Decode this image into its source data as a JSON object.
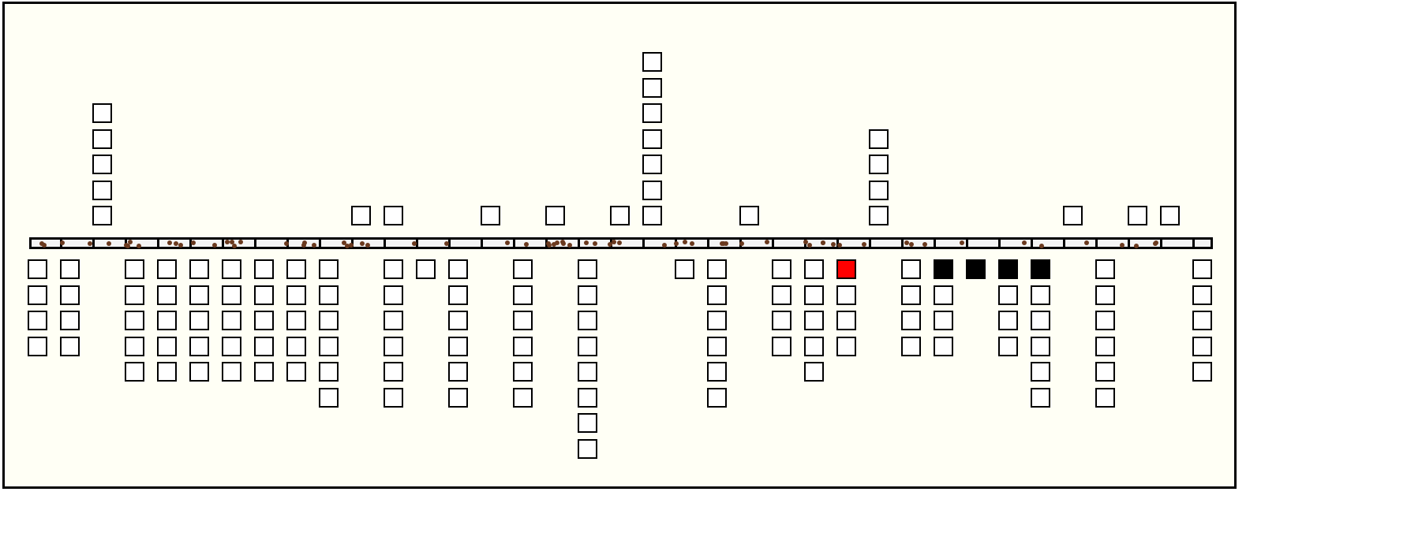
{
  "colors": {
    "background": "#fffff5",
    "cell": "#ffffff",
    "highlight": "#ff0000",
    "filled": "#000000",
    "bar_dots": "#6b3a1f"
  },
  "columns": [
    {
      "above": 0,
      "below": 4
    },
    {
      "above": 0,
      "below": 4
    },
    {
      "above": 5,
      "below": 0
    },
    {
      "above": 0,
      "below": 5
    },
    {
      "above": 0,
      "below": 5
    },
    {
      "above": 0,
      "below": 5
    },
    {
      "above": 0,
      "below": 5
    },
    {
      "above": 0,
      "below": 5
    },
    {
      "above": 0,
      "below": 5
    },
    {
      "above": 0,
      "below": 6
    },
    {
      "above": 1,
      "below": 0
    },
    {
      "above": 1,
      "below": 6
    },
    {
      "above": 0,
      "below": 1
    },
    {
      "above": 0,
      "below": 6
    },
    {
      "above": 1,
      "below": 0
    },
    {
      "above": 0,
      "below": 6
    },
    {
      "above": 1,
      "below": 0
    },
    {
      "above": 0,
      "below": 8
    },
    {
      "above": 1,
      "below": 0
    },
    {
      "above": 7,
      "below": 0
    },
    {
      "above": 0,
      "below": 1
    },
    {
      "above": 0,
      "below": 6
    },
    {
      "above": 1,
      "below": 0
    },
    {
      "above": 0,
      "below": 4
    },
    {
      "above": 0,
      "below": 5
    },
    {
      "above": 0,
      "below": 4,
      "first_below": "red"
    },
    {
      "above": 4,
      "below": 0
    },
    {
      "above": 0,
      "below": 4
    },
    {
      "above": 0,
      "below": 4,
      "first_below": "black"
    },
    {
      "above": 0,
      "below": 1,
      "first_below": "black"
    },
    {
      "above": 0,
      "below": 4,
      "first_below": "black"
    },
    {
      "above": 0,
      "below": 6,
      "first_below": "black"
    },
    {
      "above": 1,
      "below": 0
    },
    {
      "above": 0,
      "below": 6
    },
    {
      "above": 1,
      "below": 0
    },
    {
      "above": 1,
      "below": 0
    },
    {
      "above": 0,
      "below": 5
    }
  ]
}
